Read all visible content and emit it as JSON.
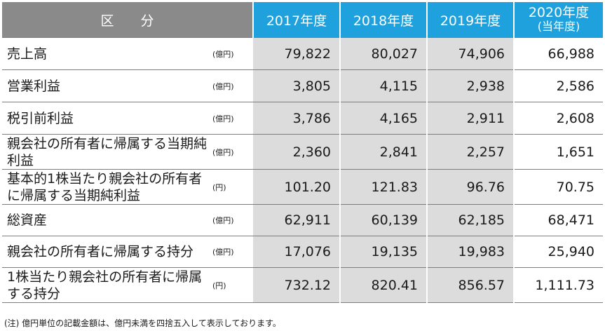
{
  "table": {
    "header": {
      "kubun": "区　　分",
      "years": [
        "2017年度",
        "2018年度",
        "2019年度"
      ],
      "current_year": "2020年度",
      "current_sub": "(当年度)"
    },
    "rows": [
      {
        "label": "売上高",
        "unit": "(億円)",
        "values": [
          "79,822",
          "80,027",
          "74,906",
          "66,988"
        ]
      },
      {
        "label": "営業利益",
        "unit": "(億円)",
        "values": [
          "3,805",
          "4,115",
          "2,938",
          "2,586"
        ]
      },
      {
        "label": "税引前利益",
        "unit": "(億円)",
        "values": [
          "3,786",
          "4,165",
          "2,911",
          "2,608"
        ]
      },
      {
        "label": "親会社の所有者に帰属する当期純利益",
        "unit": "(億円)",
        "values": [
          "2,360",
          "2,841",
          "2,257",
          "1,651"
        ]
      },
      {
        "label": "基本的1株当たり親会社の所有者に帰属する当期純利益",
        "unit": "(円)",
        "values": [
          "101.20",
          "121.83",
          "96.76",
          "70.75"
        ]
      },
      {
        "label": "総資産",
        "unit": "(億円)",
        "values": [
          "62,911",
          "60,139",
          "62,185",
          "68,471"
        ]
      },
      {
        "label": "親会社の所有者に帰属する持分",
        "unit": "(億円)",
        "values": [
          "17,076",
          "19,135",
          "19,983",
          "25,940"
        ]
      },
      {
        "label": "1株当たり親会社の所有者に帰属する持分",
        "unit": "(円)",
        "values": [
          "732.12",
          "820.41",
          "856.57",
          "1,111.73"
        ]
      }
    ]
  },
  "note": "(注) 億円単位の記載金額は、億円未満を四捨五入して表示しております。",
  "colors": {
    "header_gray": "#8a8a8a",
    "header_blue": "#1ea1dc",
    "cell_gray": "#dcdcdc"
  }
}
